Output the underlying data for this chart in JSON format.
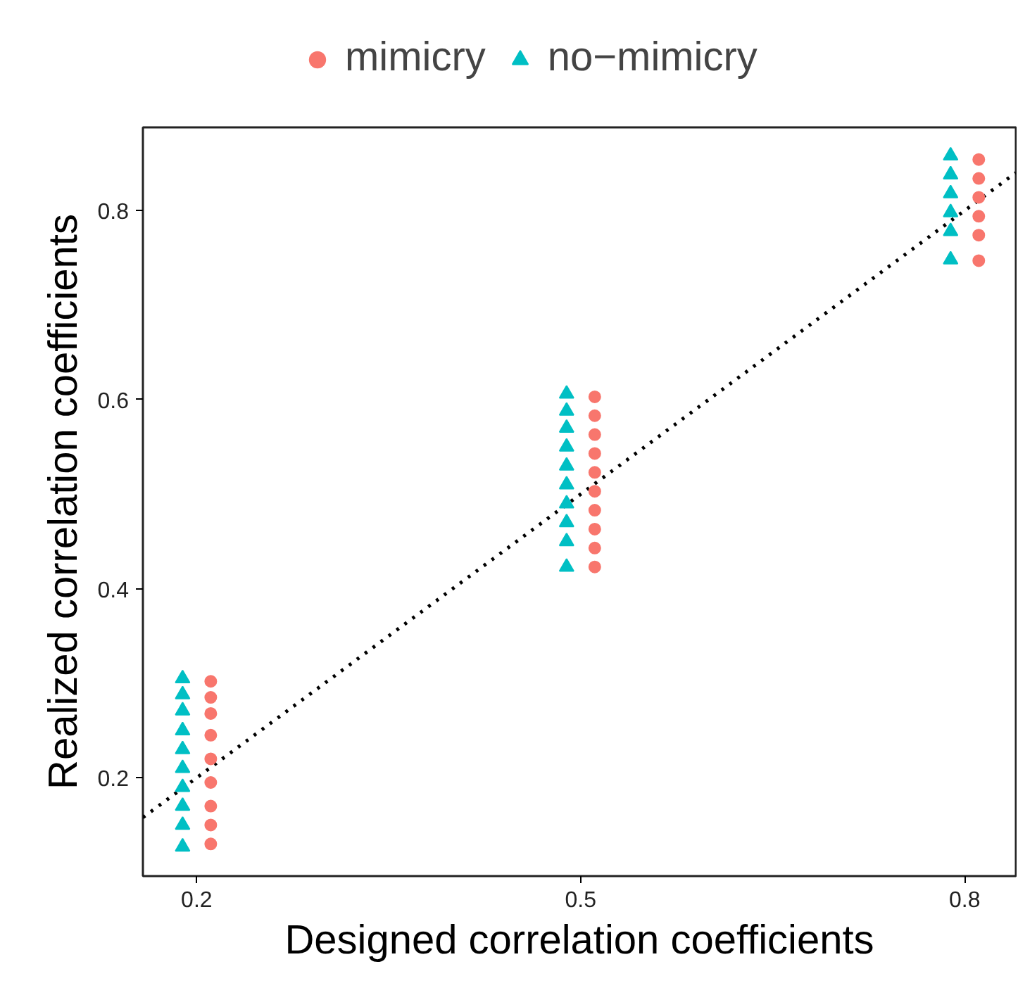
{
  "chart_data": {
    "type": "scatter",
    "xlabel": "Designed correlation coefficients",
    "ylabel": "Realized correlation coefficients",
    "xlim": [
      0.158,
      0.84
    ],
    "ylim": [
      0.096,
      0.888
    ],
    "xticks": [
      0.2,
      0.5,
      0.8
    ],
    "yticks": [
      0.2,
      0.4,
      0.6,
      0.8
    ],
    "grid": false,
    "legend": "top",
    "series": [
      {
        "type": "line",
        "color": "#000000",
        "line_style": "dotted",
        "x": [
          0.158,
          0.84
        ],
        "values": [
          0.158,
          0.84
        ]
      },
      {
        "name": "mimicry",
        "color": "#f8766d",
        "marker": "circle",
        "x": [
          0.211,
          0.211,
          0.211,
          0.211,
          0.211,
          0.211,
          0.211,
          0.211,
          0.211,
          0.511,
          0.511,
          0.511,
          0.511,
          0.511,
          0.511,
          0.511,
          0.511,
          0.511,
          0.511,
          0.811,
          0.811,
          0.811,
          0.811,
          0.811,
          0.811
        ],
        "values": [
          0.302,
          0.285,
          0.268,
          0.245,
          0.22,
          0.195,
          0.17,
          0.15,
          0.13,
          0.603,
          0.583,
          0.563,
          0.543,
          0.523,
          0.503,
          0.483,
          0.463,
          0.443,
          0.423,
          0.854,
          0.834,
          0.814,
          0.794,
          0.774,
          0.747
        ]
      },
      {
        "name": "no−mimicry",
        "color": "#00bfc4",
        "marker": "triangle",
        "x": [
          0.189,
          0.189,
          0.189,
          0.189,
          0.189,
          0.189,
          0.189,
          0.189,
          0.189,
          0.189,
          0.489,
          0.489,
          0.489,
          0.489,
          0.489,
          0.489,
          0.489,
          0.489,
          0.489,
          0.489,
          0.789,
          0.789,
          0.789,
          0.789,
          0.789,
          0.789
        ],
        "values": [
          0.305,
          0.288,
          0.271,
          0.25,
          0.23,
          0.21,
          0.19,
          0.17,
          0.15,
          0.127,
          0.606,
          0.588,
          0.57,
          0.55,
          0.53,
          0.51,
          0.49,
          0.47,
          0.45,
          0.423,
          0.858,
          0.838,
          0.818,
          0.798,
          0.778,
          0.748
        ]
      }
    ]
  }
}
